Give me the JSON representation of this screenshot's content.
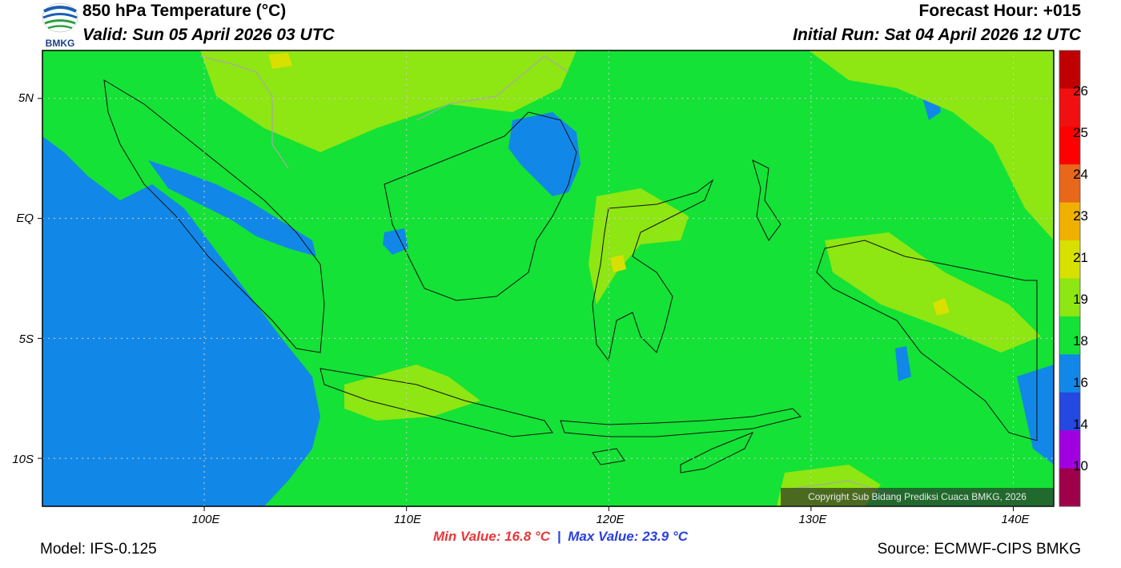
{
  "header": {
    "title": "850 hPa Temperature (°C)",
    "valid": "Valid: Sun 05 April 2026 03 UTC",
    "forecast_hour": "Forecast Hour: +015",
    "initial_run": "Initial Run: Sat 04 April 2026 12 UTC",
    "logo_text": "BMKG"
  },
  "map": {
    "lat_labels": [
      "5N",
      "EQ",
      "5S",
      "10S"
    ],
    "lon_labels": [
      "100E",
      "110E",
      "120E",
      "130E",
      "140E"
    ],
    "extent": {
      "lon_min": 92,
      "lon_max": 142,
      "lat_min": -12,
      "lat_max": 7
    },
    "background_color": "#14e236"
  },
  "colorbar": {
    "labels": [
      "26",
      "25",
      "24",
      "23",
      "21",
      "19",
      "18",
      "16",
      "14",
      "10"
    ],
    "colors": [
      "#c00000",
      "#f01010",
      "#ff0000",
      "#e8671a",
      "#f0b000",
      "#d8e000",
      "#8ee612",
      "#14e236",
      "#1188e8",
      "#2448e0",
      "#a000e0",
      "#a0004a"
    ]
  },
  "stats": {
    "min": "Min Value: 16.8 °C",
    "separator": "|",
    "max": "Max Value: 23.9 °C"
  },
  "footer": {
    "model": "Model: IFS-0.125",
    "source": "Source: ECMWF-CIPS BMKG",
    "copyright": "Copyright Sub Bidang Prediksi Cuaca BMKG, 2026"
  }
}
